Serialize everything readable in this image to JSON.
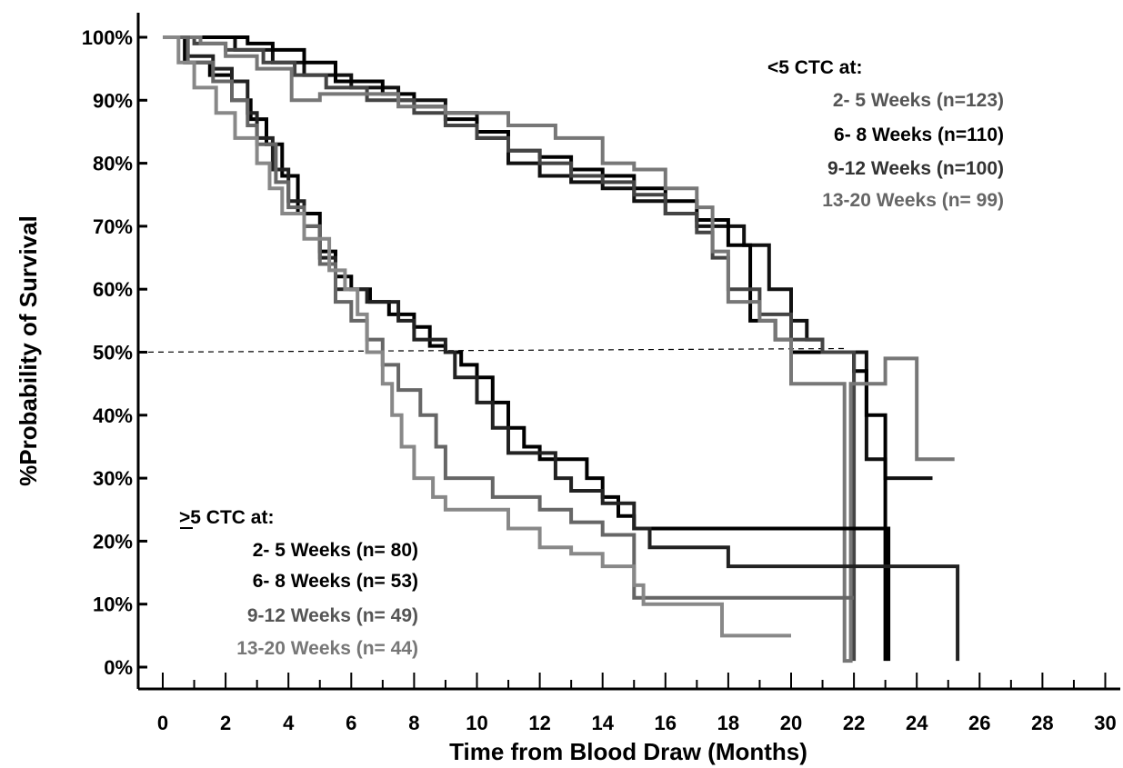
{
  "chart_data": {
    "type": "line",
    "subtype": "kaplan-meier step curves",
    "title": "",
    "xlabel": "Time from Blood Draw (Months)",
    "ylabel": "%Probability of Survival",
    "xlim": [
      0,
      30
    ],
    "ylim": [
      0,
      100
    ],
    "xticks": [
      0,
      2,
      4,
      6,
      8,
      10,
      12,
      14,
      16,
      18,
      20,
      22,
      24,
      26,
      28,
      30
    ],
    "xtick_labels": [
      "0",
      "2",
      "4",
      "6",
      "8",
      "10",
      "12",
      "14",
      "16",
      "18",
      "20",
      "22",
      "24",
      "26",
      "28",
      "30"
    ],
    "yticks": [
      0,
      10,
      20,
      30,
      40,
      50,
      60,
      70,
      80,
      90,
      100
    ],
    "ytick_labels": [
      "0%",
      "10%",
      "20%",
      "30%",
      "40%",
      "50%",
      "60%",
      "70%",
      "80%",
      "90%",
      "100%"
    ],
    "grid": false,
    "reference_line": {
      "y": 50,
      "style": "dashed"
    },
    "legend_low": {
      "title": "<5 CTC at:",
      "entries": [
        "2-  5 Weeks (n=123)",
        "6-  8 Weeks (n=110)",
        "9-12 Weeks (n=100)",
        "13-20 Weeks (n=  99)"
      ]
    },
    "legend_high": {
      "title": ">5 CTC at:",
      "entries": [
        "2-  5 Weeks (n= 80)",
        "6-  8 Weeks (n= 53)",
        "9-12 Weeks (n= 49)",
        "13-20 Weeks (n= 44)"
      ]
    },
    "series": [
      {
        "group": "low",
        "color": "#111111",
        "points": [
          [
            0,
            100
          ],
          [
            1.5,
            100
          ],
          [
            2.3,
            98
          ],
          [
            3.5,
            96
          ],
          [
            4.5,
            94
          ],
          [
            6,
            92
          ],
          [
            7.5,
            90
          ],
          [
            9,
            88
          ],
          [
            10,
            84
          ],
          [
            11,
            80
          ],
          [
            12,
            78
          ],
          [
            13,
            77
          ],
          [
            14,
            76
          ],
          [
            15,
            74
          ],
          [
            16,
            72
          ],
          [
            17,
            70
          ],
          [
            18.5,
            67
          ],
          [
            19.3,
            60
          ],
          [
            20,
            55
          ],
          [
            20.5,
            52
          ],
          [
            21,
            50
          ],
          [
            22,
            50
          ],
          [
            22.4,
            33
          ],
          [
            23,
            33
          ],
          [
            23,
            30
          ],
          [
            24.5,
            30
          ]
        ]
      },
      {
        "group": "low",
        "color": "#000000",
        "points": [
          [
            0,
            100
          ],
          [
            2,
            100
          ],
          [
            2.7,
            99
          ],
          [
            3.5,
            98
          ],
          [
            4.5,
            96
          ],
          [
            5.5,
            93
          ],
          [
            7,
            91
          ],
          [
            8,
            89
          ],
          [
            9,
            87
          ],
          [
            10,
            85
          ],
          [
            11,
            82
          ],
          [
            12,
            81
          ],
          [
            13,
            79
          ],
          [
            14,
            78
          ],
          [
            15,
            76
          ],
          [
            16,
            74
          ],
          [
            17,
            71
          ],
          [
            18,
            67
          ],
          [
            18.7,
            55
          ],
          [
            19.5,
            52
          ],
          [
            20,
            50
          ],
          [
            21.5,
            50
          ],
          [
            22,
            47
          ],
          [
            22.4,
            47
          ],
          [
            22.4,
            40
          ],
          [
            23,
            40
          ],
          [
            23,
            1
          ]
        ]
      },
      {
        "group": "low",
        "color": "#444444",
        "points": [
          [
            0,
            100
          ],
          [
            1,
            99
          ],
          [
            2,
            98
          ],
          [
            3.2,
            96
          ],
          [
            4.2,
            94
          ],
          [
            5.2,
            92
          ],
          [
            6.5,
            90
          ],
          [
            8,
            88
          ],
          [
            9,
            86
          ],
          [
            10,
            84
          ],
          [
            11,
            82
          ],
          [
            12,
            80
          ],
          [
            13,
            78
          ],
          [
            14,
            77
          ],
          [
            15,
            75
          ],
          [
            16,
            72
          ],
          [
            17,
            69
          ],
          [
            17.5,
            65
          ],
          [
            18,
            60
          ],
          [
            19,
            56
          ],
          [
            20,
            52
          ],
          [
            21,
            50
          ],
          [
            22,
            50
          ],
          [
            22,
            1
          ]
        ]
      },
      {
        "group": "low",
        "color": "#777777",
        "points": [
          [
            0,
            100
          ],
          [
            1.2,
            99
          ],
          [
            2,
            97
          ],
          [
            3,
            95
          ],
          [
            4.1,
            93
          ],
          [
            4.1,
            90
          ],
          [
            5,
            91
          ],
          [
            6,
            91
          ],
          [
            7.5,
            89
          ],
          [
            9,
            88
          ],
          [
            11,
            86
          ],
          [
            12.5,
            84
          ],
          [
            14,
            80
          ],
          [
            15,
            79
          ],
          [
            16,
            76
          ],
          [
            17,
            73
          ],
          [
            17.5,
            66
          ],
          [
            18,
            58
          ],
          [
            19,
            55
          ],
          [
            19.5,
            52
          ],
          [
            20,
            50
          ],
          [
            20,
            45
          ],
          [
            21.5,
            45
          ],
          [
            21.7,
            1
          ],
          [
            21.9,
            45
          ],
          [
            23,
            49
          ],
          [
            24,
            49
          ],
          [
            24,
            33
          ],
          [
            25.2,
            33
          ]
        ]
      },
      {
        "group": "high",
        "color": "#000000",
        "points": [
          [
            0,
            100
          ],
          [
            0.7,
            96
          ],
          [
            1.5,
            94
          ],
          [
            2.2,
            90
          ],
          [
            2.8,
            87
          ],
          [
            3.3,
            83
          ],
          [
            3.8,
            78
          ],
          [
            4.3,
            72
          ],
          [
            5,
            66
          ],
          [
            5.5,
            62
          ],
          [
            6,
            60
          ],
          [
            6.6,
            58
          ],
          [
            7.2,
            56
          ],
          [
            8,
            54
          ],
          [
            8.5,
            51
          ],
          [
            9,
            50
          ],
          [
            9.5,
            48
          ],
          [
            10,
            46
          ],
          [
            10.5,
            42
          ],
          [
            11,
            38
          ],
          [
            11.5,
            35
          ],
          [
            12,
            33
          ],
          [
            13.5,
            30
          ],
          [
            14,
            27
          ],
          [
            14.5,
            24
          ],
          [
            15,
            22
          ],
          [
            22.8,
            22
          ],
          [
            23.1,
            1
          ]
        ]
      },
      {
        "group": "high",
        "color": "#222222",
        "points": [
          [
            0,
            100
          ],
          [
            0.8,
            97
          ],
          [
            1.6,
            95
          ],
          [
            2.2,
            93
          ],
          [
            2.7,
            88
          ],
          [
            3,
            84
          ],
          [
            3.5,
            79
          ],
          [
            4,
            74
          ],
          [
            4.5,
            70
          ],
          [
            5,
            65
          ],
          [
            5.5,
            60
          ],
          [
            6.5,
            58
          ],
          [
            7.5,
            55
          ],
          [
            8,
            52
          ],
          [
            9,
            50
          ],
          [
            9.3,
            46
          ],
          [
            10,
            42
          ],
          [
            10.5,
            38
          ],
          [
            11,
            34
          ],
          [
            12.5,
            30
          ],
          [
            13,
            28
          ],
          [
            14,
            26
          ],
          [
            15,
            22
          ],
          [
            15.5,
            19
          ],
          [
            18,
            19
          ],
          [
            18,
            16
          ],
          [
            25.3,
            16
          ],
          [
            25.3,
            1
          ]
        ]
      },
      {
        "group": "high",
        "color": "#666666",
        "points": [
          [
            0,
            100
          ],
          [
            0.8,
            96
          ],
          [
            1.6,
            93
          ],
          [
            2.2,
            90
          ],
          [
            2.7,
            86
          ],
          [
            3,
            83
          ],
          [
            3.6,
            77
          ],
          [
            4,
            73
          ],
          [
            4.5,
            70
          ],
          [
            5,
            64
          ],
          [
            5.5,
            58
          ],
          [
            6,
            55
          ],
          [
            6.5,
            52
          ],
          [
            7,
            48
          ],
          [
            7.5,
            44
          ],
          [
            8.2,
            40
          ],
          [
            8.7,
            35
          ],
          [
            9,
            30
          ],
          [
            10.5,
            27
          ],
          [
            12,
            25
          ],
          [
            13,
            23
          ],
          [
            14,
            21
          ],
          [
            15,
            19
          ],
          [
            15,
            11
          ],
          [
            22,
            11
          ]
        ]
      },
      {
        "group": "high",
        "color": "#888888",
        "points": [
          [
            0,
            100
          ],
          [
            0.5,
            96
          ],
          [
            1,
            92
          ],
          [
            1.7,
            88
          ],
          [
            2.3,
            84
          ],
          [
            3,
            80
          ],
          [
            3.4,
            76
          ],
          [
            3.8,
            72
          ],
          [
            4.5,
            68
          ],
          [
            5.3,
            63
          ],
          [
            5.8,
            60
          ],
          [
            6.2,
            56
          ],
          [
            6.5,
            50
          ],
          [
            7,
            45
          ],
          [
            7.3,
            40
          ],
          [
            7.6,
            35
          ],
          [
            8,
            30
          ],
          [
            8.6,
            27
          ],
          [
            9,
            25
          ],
          [
            11,
            22
          ],
          [
            12,
            19
          ],
          [
            13,
            18
          ],
          [
            14,
            16
          ],
          [
            15,
            13
          ],
          [
            15.3,
            10
          ],
          [
            17.8,
            10
          ],
          [
            17.8,
            5
          ],
          [
            20,
            5
          ]
        ]
      }
    ]
  }
}
